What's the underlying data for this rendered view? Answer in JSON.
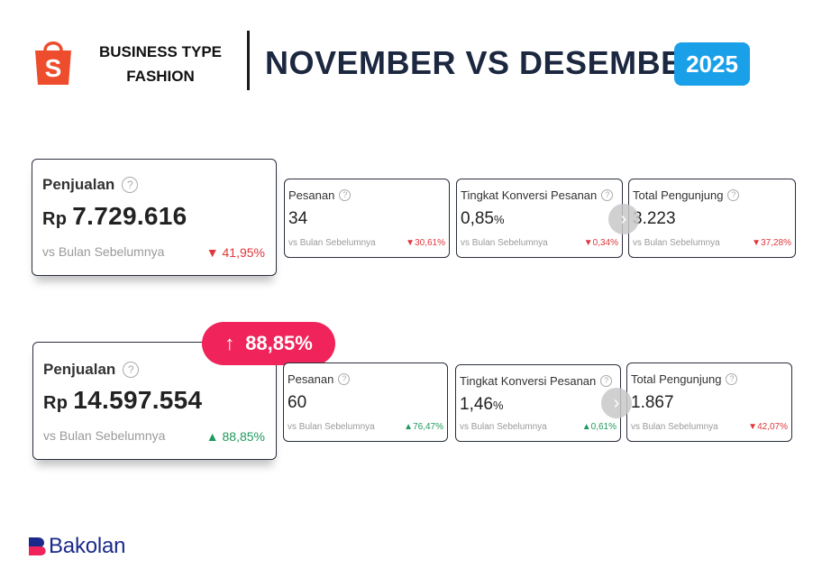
{
  "header": {
    "brand_icon": "shopee-bag-icon",
    "business_type_line1": "BUSINESS TYPE",
    "business_type_line2": "FASHION",
    "headline": "NOVEMBER VS DESEMBER",
    "year": "2025"
  },
  "november": {
    "main": {
      "label": "Penjualan",
      "currency": "Rp",
      "value": "7.729.616",
      "comparison": "vs Bulan Sebelumnya",
      "delta": "41,95%",
      "direction": "down"
    },
    "metrics": [
      {
        "label": "Pesanan",
        "value": "34",
        "unit": "",
        "comparison": "vs Bulan Sebelumnya",
        "delta": "30,61%",
        "direction": "down"
      },
      {
        "label": "Tingkat Konversi Pesanan",
        "value": "0,85",
        "unit": "%",
        "comparison": "vs Bulan Sebelumnya",
        "delta": "0,34%",
        "direction": "down"
      },
      {
        "label": "Total Pengunjung",
        "value": "3.223",
        "unit": "",
        "comparison": "vs Bulan Sebelumnya",
        "delta": "37,28%",
        "direction": "down"
      }
    ]
  },
  "desember": {
    "growth_badge": "88,85%",
    "main": {
      "label": "Penjualan",
      "currency": "Rp",
      "value": "14.597.554",
      "comparison": "vs Bulan Sebelumnya",
      "delta": "88,85%",
      "direction": "up"
    },
    "metrics": [
      {
        "label": "Pesanan",
        "value": "60",
        "unit": "",
        "comparison": "vs Bulan Sebelumnya",
        "delta": "76,47%",
        "direction": "up"
      },
      {
        "label": "Tingkat Konversi Pesanan",
        "value": "1,46",
        "unit": "%",
        "comparison": "vs Bulan Sebelumnya",
        "delta": "0,61%",
        "direction": "up"
      },
      {
        "label": "Total Pengunjung",
        "value": "1.867",
        "unit": "",
        "comparison": "vs Bulan Sebelumnya",
        "delta": "42,07%",
        "direction": "down"
      }
    ]
  },
  "glyphs": {
    "help": "?",
    "down": "▼",
    "up": "▲",
    "growth_arrow": "↑",
    "next": "›"
  },
  "colors": {
    "down": "#e0363c",
    "up": "#1f9a5c",
    "year_badge": "#1aa0e8",
    "growth_pill": "#f0245a",
    "headline": "#1c2740"
  },
  "footer": {
    "brand": "Bakolan"
  }
}
